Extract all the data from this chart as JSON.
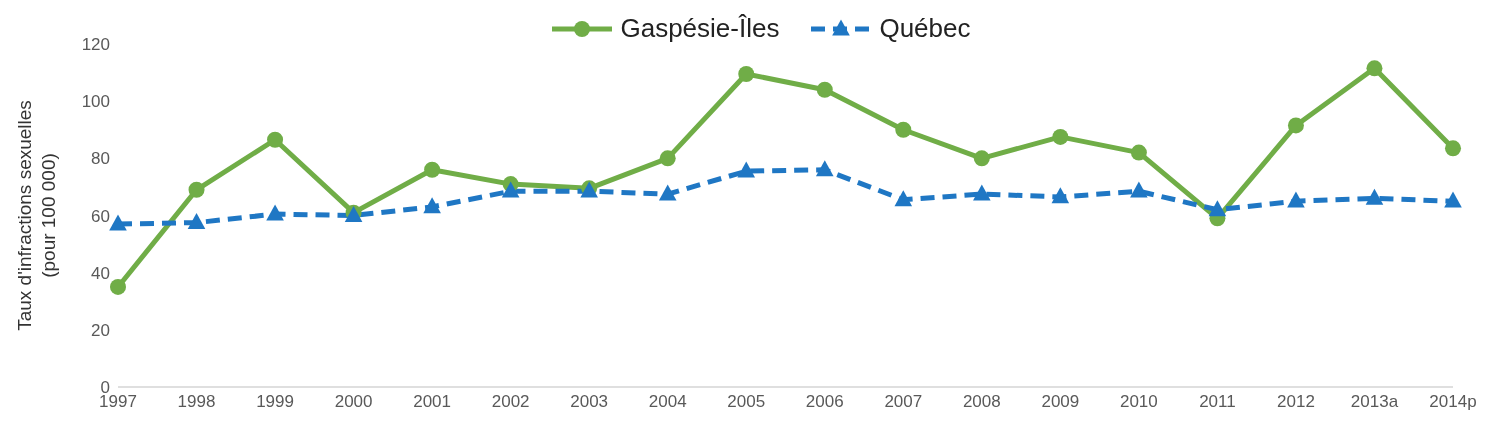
{
  "chart_data": {
    "type": "line",
    "ylabel": "Taux d'infractions sexuelles\n(pour 100 000)",
    "categories": [
      "1997",
      "1998",
      "1999",
      "2000",
      "2001",
      "2002",
      "2003",
      "2004",
      "2005",
      "2006",
      "2007",
      "2008",
      "2009",
      "2010",
      "2011",
      "2012",
      "2013a",
      "2014p"
    ],
    "series": [
      {
        "name": "Gaspésie-Îles",
        "color": "#70ad47",
        "marker": "circle",
        "line_style": "solid",
        "values": [
          35,
          69,
          86.5,
          61,
          76,
          71,
          69.5,
          80,
          109.5,
          104,
          90,
          80,
          87.5,
          82,
          59,
          91.5,
          111.5,
          83.5
        ]
      },
      {
        "name": "Québec",
        "color": "#1f77c4",
        "marker": "triangle",
        "line_style": "dashed",
        "values": [
          57,
          57.5,
          60.5,
          60,
          63,
          68.5,
          68.5,
          67.5,
          75.5,
          76,
          65.5,
          67.5,
          66.5,
          68.5,
          62,
          65,
          66,
          65
        ]
      }
    ],
    "ylim": [
      0,
      120
    ],
    "yticks": [
      0,
      20,
      40,
      60,
      80,
      100,
      120
    ],
    "legend": "top"
  }
}
